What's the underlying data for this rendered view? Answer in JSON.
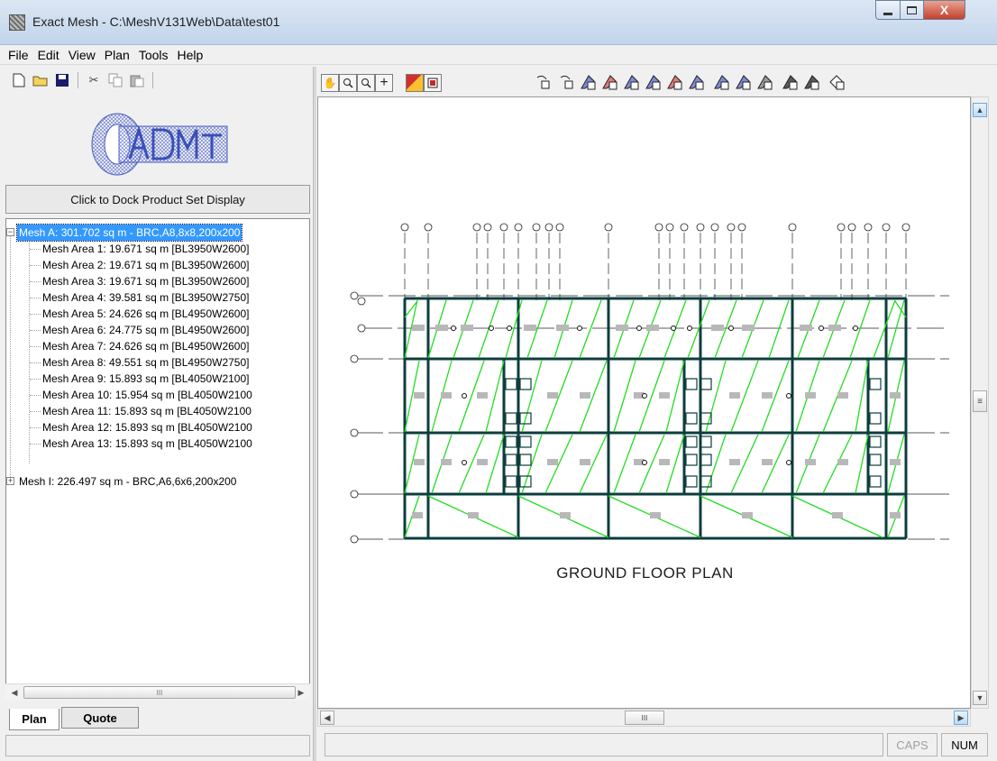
{
  "window": {
    "title": "Exact Mesh - C:\\MeshV131Web\\Data\\test01",
    "close_glyph": "X"
  },
  "menu": [
    "File",
    "Edit",
    "View",
    "Plan",
    "Tools",
    "Help"
  ],
  "left_panel": {
    "dock_button": "Click to Dock Product Set Display",
    "tree": {
      "mesh_a": "Mesh A: 301.702 sq m - BRC,A8,8x8,200x200",
      "mesh_a_children": [
        "Mesh Area 1: 19.671  sq m [BL3950W2600]",
        "Mesh Area 2: 19.671  sq m [BL3950W2600]",
        "Mesh Area 3: 19.671  sq m [BL3950W2600]",
        "Mesh Area 4: 39.581  sq m [BL3950W2750]",
        "Mesh Area 5: 24.626  sq m [BL4950W2600]",
        "Mesh Area 6: 24.775  sq m [BL4950W2600]",
        "Mesh Area 7: 24.626  sq m [BL4950W2600]",
        "Mesh Area 8: 49.551  sq m [BL4950W2750]",
        "Mesh Area 9: 15.893  sq m [BL4050W2100]",
        "Mesh Area 10: 15.954  sq m [BL4050W2100",
        "Mesh Area 11: 15.893  sq m [BL4050W2100",
        "Mesh Area 12: 15.893  sq m [BL4050W2100",
        "Mesh Area 13: 15.893  sq m [BL4050W2100"
      ],
      "mesh_i": "Mesh I: 226.497 sq m - BRC,A6,6x6,200x200"
    },
    "scroll_thumb_glyph": "III",
    "tabs": {
      "plan": "Plan",
      "quote": "Quote"
    }
  },
  "canvas": {
    "plan_title": "GROUND FLOOR PLAN",
    "scroll_thumb_glyph": "III"
  },
  "status": {
    "caps": "CAPS",
    "num": "NUM"
  },
  "colors": {
    "mesh_green": "#22dd22",
    "selection": "#3399ff"
  }
}
